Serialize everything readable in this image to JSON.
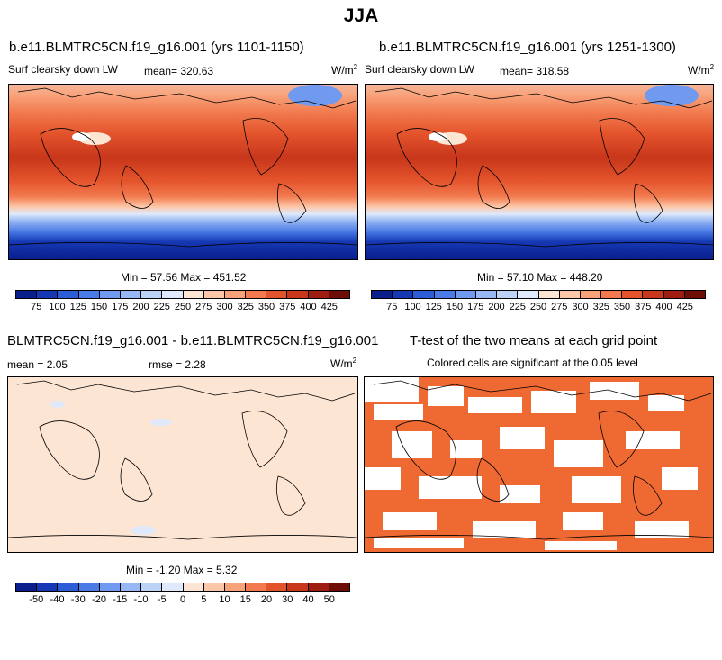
{
  "title": "JJA",
  "panels": {
    "p1": {
      "title": "b.e11.BLMTRC5CN.f19_g16.001 (yrs 1101-1150)",
      "variable": "Surf clearsky down LW",
      "mean": "mean= 320.63",
      "units_base": "W/m",
      "units_exp": "2",
      "minmax": "Min =  57.56 Max = 451.52"
    },
    "p2": {
      "title": "b.e11.BLMTRC5CN.f19_g16.001 (yrs 1251-1300)",
      "variable": "Surf clearsky down LW",
      "mean": "mean= 318.58",
      "units_base": "W/m",
      "units_exp": "2",
      "minmax": "Min =  57.10 Max = 448.20"
    },
    "diff": {
      "title": "BLMTRC5CN.f19_g16.001 - b.e11.BLMTRC5CN.f19_g16.001",
      "mean": "mean =   2.05",
      "rmse": "rmse =   2.28",
      "units_base": "W/m",
      "units_exp": "2",
      "minmax": "Min =  -1.20 Max =   5.32"
    },
    "ttest": {
      "title": "T-test of the two means at each grid point",
      "subtitle": "Colored cells are significant at the 0.05 level"
    }
  },
  "colorbars": {
    "abs": {
      "labels": [
        "75",
        "100",
        "125",
        "150",
        "175",
        "200",
        "225",
        "250",
        "275",
        "300",
        "325",
        "350",
        "375",
        "400",
        "425"
      ],
      "colors": [
        "#0a1e8c",
        "#1638b4",
        "#2c5cd6",
        "#4a7be6",
        "#6f9af0",
        "#97b8f4",
        "#bcd2f7",
        "#dfe9fb",
        "#fde5d4",
        "#fcc7a8",
        "#f8a27a",
        "#f27a4e",
        "#e4542c",
        "#c8361b",
        "#9f1d10",
        "#6e0c06"
      ]
    },
    "diff": {
      "labels": [
        "-50",
        "-40",
        "-30",
        "-20",
        "-15",
        "-10",
        "-5",
        "0",
        "5",
        "10",
        "15",
        "20",
        "30",
        "40",
        "50"
      ],
      "colors": [
        "#0a1e8c",
        "#1638b4",
        "#2c5cd6",
        "#4a7be6",
        "#6f9af0",
        "#97b8f4",
        "#bcd2f7",
        "#dfe9fb",
        "#fde5d4",
        "#fcc7a8",
        "#f8a27a",
        "#f27a4e",
        "#e4542c",
        "#c8361b",
        "#9f1d10",
        "#6e0c06"
      ]
    }
  },
  "colors": {
    "ttest_significant": "#ee6a32",
    "diff_fill": "#fde5d4"
  }
}
